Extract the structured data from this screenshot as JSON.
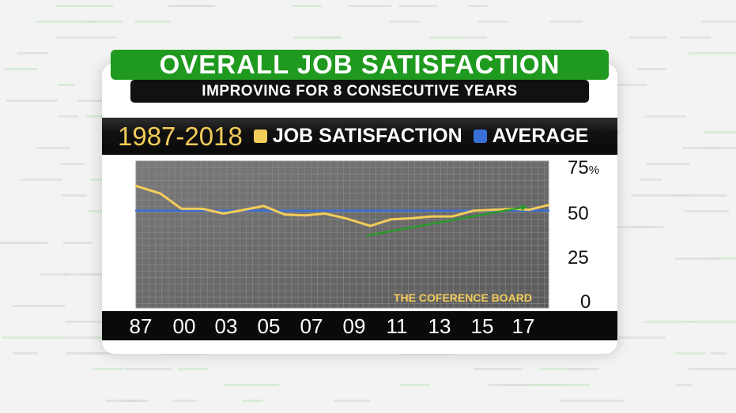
{
  "header": {
    "title": "OVERALL JOB SATISFACTION",
    "subtitle": "IMPROVING FOR 8 CONSECUTIVE YEARS"
  },
  "legend": {
    "range": "1987-2018",
    "items": [
      {
        "label": "JOB SATISFACTION",
        "color": "#f3cc59"
      },
      {
        "label": "AVERAGE",
        "color": "#3b6fd8"
      }
    ]
  },
  "source": "THE COFERENCE BOARD",
  "chart_data": {
    "type": "line",
    "title": "OVERALL JOB SATISFACTION",
    "subtitle": "IMPROVING FOR 8 CONSECUTIVE YEARS",
    "x_tick_labels": [
      "87",
      "00",
      "03",
      "05",
      "07",
      "09",
      "11",
      "13",
      "15",
      "17"
    ],
    "y_ticks": [
      {
        "value": 75,
        "label": "75",
        "unit": "%"
      },
      {
        "value": 50,
        "label": "50",
        "unit": ""
      },
      {
        "value": 25,
        "label": "25",
        "unit": ""
      },
      {
        "value": 0,
        "label": "0",
        "unit": ""
      }
    ],
    "ylim": [
      0,
      75
    ],
    "grid": true,
    "legend_position": "top",
    "series": [
      {
        "name": "JOB SATISFACTION",
        "color": "#f3cc59",
        "points": [
          [
            0,
            64
          ],
          [
            1.4,
            60
          ],
          [
            2.6,
            52
          ],
          [
            3.8,
            52
          ],
          [
            5.0,
            49.5
          ],
          [
            6.2,
            51.5
          ],
          [
            7.3,
            53.5
          ],
          [
            8.5,
            49
          ],
          [
            9.7,
            48.5
          ],
          [
            10.8,
            49.5
          ],
          [
            12.0,
            47
          ],
          [
            13.4,
            43
          ],
          [
            14.6,
            46.5
          ],
          [
            15.7,
            47
          ],
          [
            16.9,
            48
          ],
          [
            18.1,
            48
          ],
          [
            19.3,
            51
          ],
          [
            20.5,
            51.5
          ],
          [
            21.6,
            52
          ],
          [
            22.5,
            51.5
          ],
          [
            23.6,
            54
          ]
        ]
      },
      {
        "name": "AVERAGE",
        "color": "#3b6fd8",
        "points": [
          [
            0,
            51
          ],
          [
            23.6,
            51
          ]
        ]
      }
    ],
    "annotations": [
      {
        "type": "trend-arrow",
        "color": "#2a9a2a",
        "from": [
          13.2,
          38
        ],
        "to": [
          22.3,
          53
        ]
      }
    ]
  }
}
